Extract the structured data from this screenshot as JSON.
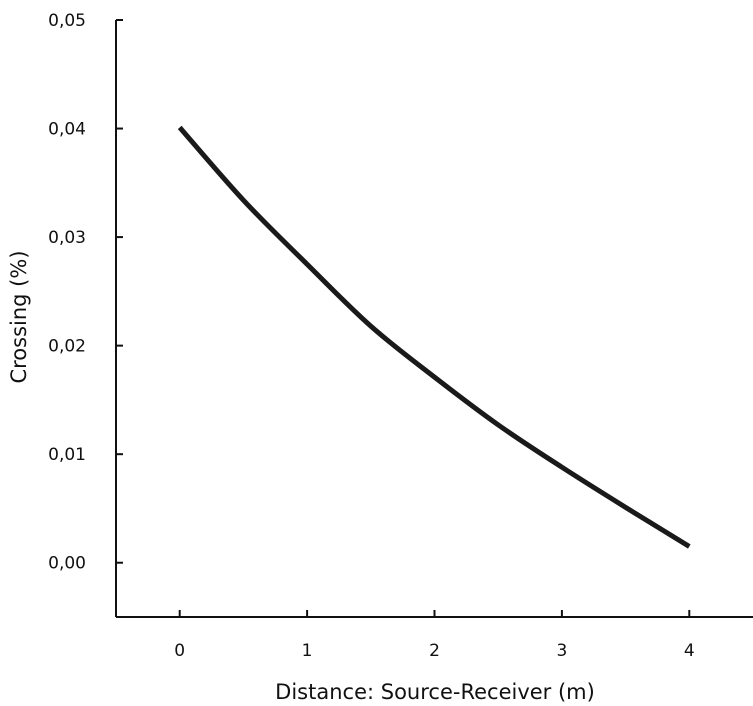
{
  "chart_data": {
    "type": "line",
    "title": "",
    "xlabel": "Distance: Source-Receiver (m)",
    "ylabel": "Crossing (%)",
    "xlim": [
      -0.5,
      4.5
    ],
    "ylim": [
      -0.005,
      0.05
    ],
    "x_ticks": [
      {
        "value": 0,
        "label": "0"
      },
      {
        "value": 1,
        "label": "1"
      },
      {
        "value": 2,
        "label": "2"
      },
      {
        "value": 3,
        "label": "3"
      },
      {
        "value": 4,
        "label": "4"
      }
    ],
    "y_ticks": [
      {
        "value": 0.0,
        "label": "0,00"
      },
      {
        "value": 0.01,
        "label": "0,01"
      },
      {
        "value": 0.02,
        "label": "0,02"
      },
      {
        "value": 0.03,
        "label": "0,03"
      },
      {
        "value": 0.04,
        "label": "0,04"
      },
      {
        "value": 0.05,
        "label": "0,05"
      }
    ],
    "grid": false,
    "color": "#1a1a1a",
    "series": [
      {
        "x": [
          0,
          0.5,
          1,
          1.5,
          2,
          2.5,
          3,
          3.5,
          4
        ],
        "y": [
          0.0401,
          0.0334,
          0.0275,
          0.0218,
          0.0171,
          0.0127,
          0.0088,
          0.0051,
          0.0015
        ]
      }
    ]
  }
}
